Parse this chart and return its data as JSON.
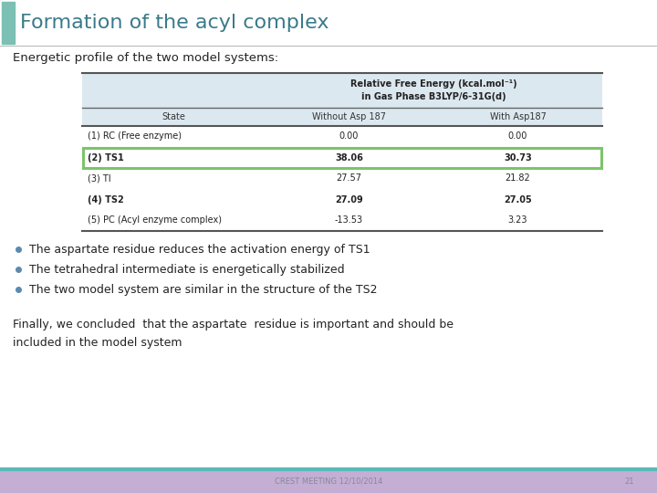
{
  "title": "Formation of the acyl complex",
  "subtitle": "Energetic profile of the two model systems:",
  "title_bar_color": "#7bbfb5",
  "title_color": "#3a7a8a",
  "bg_color": "#ffffff",
  "footer_bg": "#c4aed4",
  "footer_top_line": "#5abab8",
  "footer_text": "CREST MEETING 12/10/2014",
  "footer_page": "21",
  "table_header_bg": "#dce8f0",
  "table_highlight_border": "#7dc36b",
  "col_header": [
    "State",
    "Without Asp 187",
    "With Asp187"
  ],
  "merged_header": "Relative Free Energy (kcal.mol⁻¹)\nin Gas Phase B3LYP/6-31G(d)",
  "rows": [
    [
      "(1) RC (Free enzyme)",
      "0.00",
      "0.00",
      false
    ],
    [
      "(2) TS1",
      "38.06",
      "30.73",
      true
    ],
    [
      "(3) TI",
      "27.57",
      "21.82",
      false
    ],
    [
      "(4) TS2",
      "27.09",
      "27.05",
      true
    ],
    [
      "(5) PC (Acyl enzyme complex)",
      "-13.53",
      "3.23",
      false
    ]
  ],
  "bullets": [
    "The aspartate residue reduces the activation energy of TS1",
    "The tetrahedral intermediate is energetically stabilized",
    "The two model system are similar in the structure of the TS2"
  ],
  "conclusion": "Finally, we concluded  that the aspartate  residue is important and should be\nincluded in the model system",
  "bullet_color": "#5a8ab0"
}
